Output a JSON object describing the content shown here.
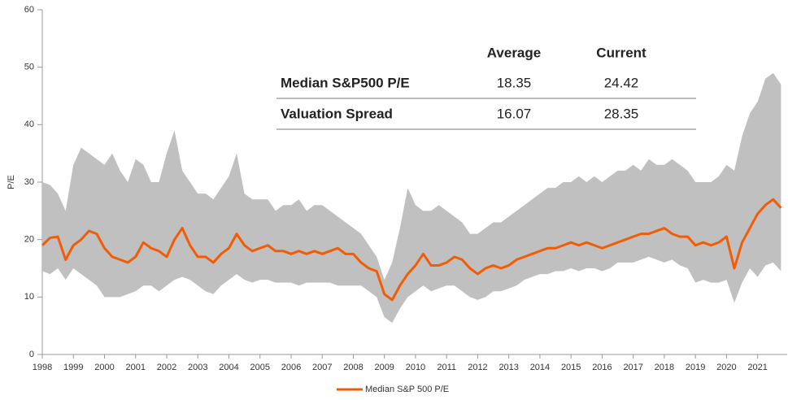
{
  "chart_data": {
    "type": "line",
    "ylabel": "P/E",
    "x": [
      1998,
      1998.25,
      1998.5,
      1998.75,
      1999,
      1999.25,
      1999.5,
      1999.75,
      2000,
      2000.25,
      2000.5,
      2000.75,
      2001,
      2001.25,
      2001.5,
      2001.75,
      2002,
      2002.25,
      2002.5,
      2002.75,
      2003,
      2003.25,
      2003.5,
      2003.75,
      2004,
      2004.25,
      2004.5,
      2004.75,
      2005,
      2005.25,
      2005.5,
      2005.75,
      2006,
      2006.25,
      2006.5,
      2006.75,
      2007,
      2007.25,
      2007.5,
      2007.75,
      2008,
      2008.25,
      2008.5,
      2008.75,
      2009,
      2009.25,
      2009.5,
      2009.75,
      2010,
      2010.25,
      2010.5,
      2010.75,
      2011,
      2011.25,
      2011.5,
      2011.75,
      2012,
      2012.25,
      2012.5,
      2012.75,
      2013,
      2013.25,
      2013.5,
      2013.75,
      2014,
      2014.25,
      2014.5,
      2014.75,
      2015,
      2015.25,
      2015.5,
      2015.75,
      2016,
      2016.25,
      2016.5,
      2016.75,
      2017,
      2017.25,
      2017.5,
      2017.75,
      2018,
      2018.25,
      2018.5,
      2018.75,
      2019,
      2019.25,
      2019.5,
      2019.75,
      2020,
      2020.25,
      2020.5,
      2020.75,
      2021,
      2021.25,
      2021.5,
      2021.75
    ],
    "series": [
      {
        "name": "Median S&P 500 P/E",
        "color": "#f25c05",
        "values": [
          19,
          20.3,
          20.5,
          16.5,
          19,
          20,
          21.5,
          21,
          18.5,
          17,
          16.5,
          16,
          17,
          19.5,
          18.5,
          18,
          17,
          20,
          22,
          19,
          17,
          17,
          16,
          17.5,
          18.5,
          21,
          19,
          18,
          18.5,
          19,
          18,
          18,
          17.5,
          18,
          17.5,
          18,
          17.5,
          18,
          18.5,
          17.5,
          17.5,
          16,
          15,
          14.5,
          10.5,
          9.5,
          12,
          14,
          15.5,
          17.5,
          15.5,
          15.5,
          16,
          17,
          16.5,
          15,
          14,
          15,
          15.5,
          15,
          15.5,
          16.5,
          17,
          17.5,
          18,
          18.5,
          18.5,
          19,
          19.5,
          19,
          19.5,
          19,
          18.5,
          19,
          19.5,
          20,
          20.5,
          21,
          21,
          21.5,
          22,
          21,
          20.5,
          20.5,
          19,
          19.5,
          19,
          19.5,
          20.5,
          15,
          19.5,
          22,
          24.5,
          26,
          27,
          25.5
        ]
      }
    ],
    "band": {
      "color": "#c0c0c0",
      "high": [
        30,
        29.5,
        28,
        25,
        33,
        36,
        35,
        34,
        33,
        35,
        32,
        30,
        34,
        33,
        30,
        30,
        35,
        39,
        32,
        30,
        28,
        28,
        27,
        29,
        31,
        35,
        28,
        27,
        27,
        27,
        25,
        26,
        26,
        27,
        25,
        26,
        26,
        25,
        24,
        23,
        22,
        21,
        19,
        17,
        13,
        16,
        22,
        29,
        26,
        25,
        25,
        26,
        25,
        24,
        23,
        21,
        21,
        22,
        23,
        23,
        24,
        25,
        26,
        27,
        28,
        29,
        29,
        30,
        30,
        31,
        30,
        31,
        30,
        31,
        32,
        32,
        33,
        32,
        34,
        33,
        33,
        34,
        33,
        32,
        30,
        30,
        30,
        31,
        33,
        32,
        38,
        42,
        44,
        48,
        49,
        47
      ],
      "low": [
        14.5,
        14,
        15,
        13,
        15,
        14,
        13,
        12,
        10,
        10,
        10,
        10.5,
        11,
        12,
        12,
        11,
        12,
        13,
        13.5,
        13,
        12,
        11,
        10.5,
        12,
        13,
        14,
        13,
        12.5,
        13,
        13,
        12.5,
        12.5,
        12.5,
        12,
        12.5,
        12.5,
        12.5,
        12.5,
        12,
        12,
        12,
        12,
        11,
        10,
        6.5,
        5.5,
        8,
        10,
        11,
        12,
        11,
        11.5,
        12,
        12,
        11,
        10,
        9.5,
        10,
        11,
        11,
        11.5,
        12,
        13,
        13.5,
        14,
        14,
        14.5,
        14.5,
        15,
        14.5,
        15,
        15,
        14.5,
        15,
        16,
        16,
        16,
        16.5,
        17,
        16.5,
        16,
        16.5,
        15.5,
        15,
        12.5,
        13,
        12.5,
        12.5,
        13,
        9,
        12.5,
        15,
        13.5,
        15.5,
        16,
        14.5
      ]
    },
    "xlim": [
      1998,
      2021.95
    ],
    "xticks": [
      1998,
      1999,
      2000,
      2001,
      2002,
      2003,
      2004,
      2005,
      2006,
      2007,
      2008,
      2009,
      2010,
      2011,
      2012,
      2013,
      2014,
      2015,
      2016,
      2017,
      2018,
      2019,
      2020,
      2021
    ],
    "ylim": [
      0,
      60
    ],
    "yticks": [
      0,
      10,
      20,
      30,
      40,
      50,
      60
    ],
    "table": {
      "header": [
        "Average",
        "Current"
      ],
      "rows": [
        [
          "Median S&P500 P/E",
          "18.35",
          "24.42"
        ],
        [
          "Valuation Spread",
          "16.07",
          "28.35"
        ]
      ]
    }
  }
}
